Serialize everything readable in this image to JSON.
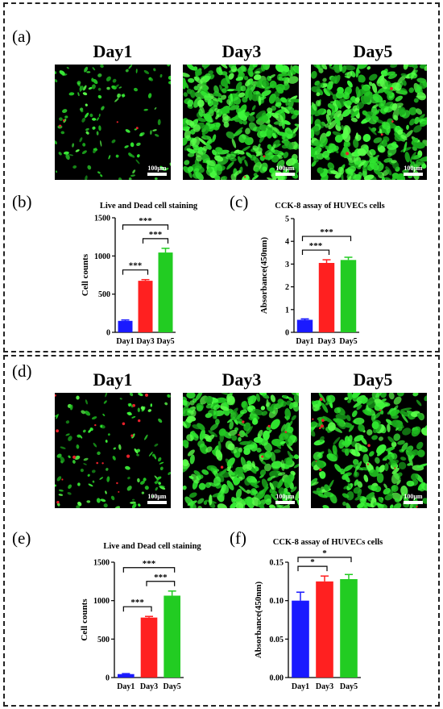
{
  "panels": {
    "a": "(a)",
    "b": "(b)",
    "c": "(c)",
    "d": "(d)",
    "e": "(e)",
    "f": "(f)"
  },
  "micrographs": {
    "top": {
      "days": [
        "Day1",
        "Day3",
        "Day5"
      ],
      "scalebar": [
        "100μm",
        "100μm",
        "100μm"
      ],
      "green_density": [
        0.18,
        0.85,
        0.8
      ],
      "red_density": [
        0.01,
        0.004,
        0.01
      ]
    },
    "bottom": {
      "days": [
        "Day1",
        "Day3",
        "Day5"
      ],
      "scalebar": [
        "100μm",
        "100μm",
        "100μm"
      ],
      "green_density": [
        0.18,
        0.7,
        0.55
      ],
      "red_density": [
        0.04,
        0.015,
        0.03
      ]
    },
    "colors": {
      "live": "#27e02a",
      "dead": "#e8202a",
      "background": "#000000"
    }
  },
  "chart_data": [
    {
      "id": "b",
      "type": "bar",
      "title": "Live and Dead cell staining",
      "ylabel": "Cell counts",
      "categories": [
        "Day1",
        "Day3",
        "Day5"
      ],
      "values": [
        150,
        675,
        1045
      ],
      "errors": [
        12,
        15,
        55
      ],
      "ylim": [
        0,
        1500
      ],
      "yticks": [
        "0",
        "500",
        "1000",
        "1500"
      ],
      "colors": [
        "#1a1aff",
        "#ff2020",
        "#22cc22"
      ],
      "significance": [
        {
          "from": 0,
          "to": 1,
          "label": "***"
        },
        {
          "from": 1,
          "to": 2,
          "label": "***"
        },
        {
          "from": 0,
          "to": 2,
          "label": "***"
        }
      ]
    },
    {
      "id": "c",
      "type": "bar",
      "title": "CCK-8 assay of HUVECs cells",
      "ylabel": "Absorbance(450nm)",
      "categories": [
        "Day1",
        "Day3",
        "Day5"
      ],
      "values": [
        0.55,
        3.05,
        3.18
      ],
      "errors": [
        0.04,
        0.14,
        0.12
      ],
      "ylim": [
        0,
        5
      ],
      "yticks": [
        "0",
        "1",
        "2",
        "3",
        "4",
        "5"
      ],
      "colors": [
        "#1a1aff",
        "#ff2020",
        "#22cc22"
      ],
      "significance": [
        {
          "from": 0,
          "to": 1,
          "label": "***"
        },
        {
          "from": 0,
          "to": 2,
          "label": "***"
        }
      ]
    },
    {
      "id": "e",
      "type": "bar",
      "title": "Live and Dead cell staining",
      "ylabel": "Cell counts",
      "categories": [
        "Day1",
        "Day3",
        "Day5"
      ],
      "values": [
        45,
        780,
        1065
      ],
      "errors": [
        6,
        15,
        60
      ],
      "ylim": [
        0,
        1500
      ],
      "yticks": [
        "0",
        "500",
        "1000",
        "1500"
      ],
      "colors": [
        "#1a1aff",
        "#ff2020",
        "#22cc22"
      ],
      "significance": [
        {
          "from": 0,
          "to": 1,
          "label": "***"
        },
        {
          "from": 1,
          "to": 2,
          "label": "***"
        },
        {
          "from": 0,
          "to": 2,
          "label": "***"
        }
      ]
    },
    {
      "id": "f",
      "type": "bar",
      "title": "CCK-8 assay of HUVECs cells",
      "ylabel": "Absorbance(450nm)",
      "categories": [
        "Day1",
        "Day3",
        "Day5"
      ],
      "values": [
        0.1,
        0.125,
        0.128
      ],
      "errors": [
        0.011,
        0.007,
        0.006
      ],
      "ylim": [
        0,
        0.15
      ],
      "yticks": [
        "0.00",
        "0.05",
        "0.10",
        "0.15"
      ],
      "colors": [
        "#1a1aff",
        "#ff2020",
        "#22cc22"
      ],
      "significance": [
        {
          "from": 0,
          "to": 1,
          "label": "*"
        },
        {
          "from": 0,
          "to": 2,
          "label": "*"
        }
      ]
    }
  ]
}
